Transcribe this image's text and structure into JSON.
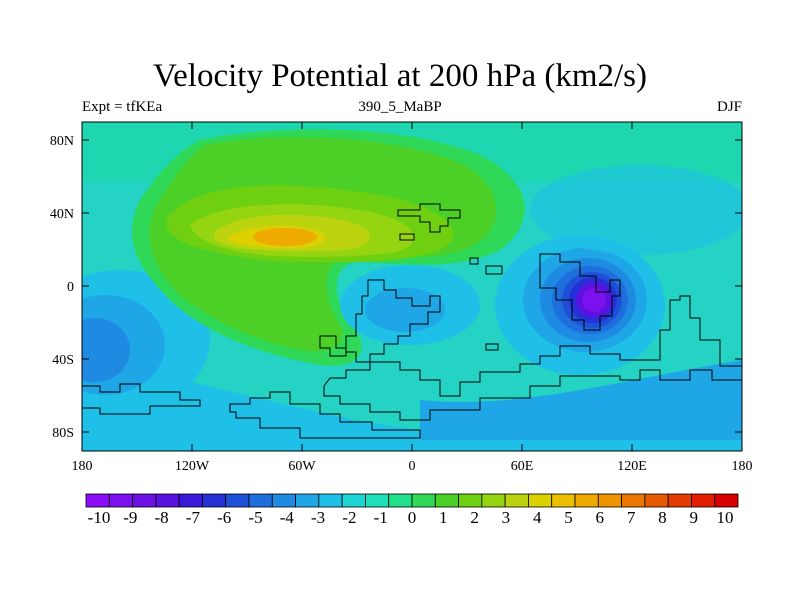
{
  "title": "Velocity Potential at 200 hPa (km2/s)",
  "subtitle_left": "Expt = tfKEa",
  "subtitle_center": "390_5_MaBP",
  "subtitle_right": "DJF",
  "x_ticks": [
    "180",
    "120W",
    "60W",
    "0",
    "60E",
    "120E",
    "180"
  ],
  "y_ticks": [
    "80N",
    "40N",
    "0",
    "40S",
    "80S"
  ],
  "colorbar": {
    "labels": [
      "-10",
      "-9",
      "-8",
      "-7",
      "-6",
      "-5",
      "-4",
      "-3",
      "-2",
      "-1",
      "0",
      "1",
      "2",
      "3",
      "4",
      "5",
      "6",
      "7",
      "8",
      "9",
      "10"
    ],
    "colors": [
      "#8a0ef5",
      "#7d10ee",
      "#6c10e6",
      "#5a12e0",
      "#3a1ad8",
      "#2530d6",
      "#1e50d8",
      "#1e6ede",
      "#1e8ae2",
      "#1ea6e6",
      "#1ec0e8",
      "#1ed4d4",
      "#1ee0b8",
      "#20e08c",
      "#30d858",
      "#4cd028",
      "#6ed010",
      "#94d410",
      "#bcd410",
      "#dcd000",
      "#ecc000",
      "#eeaa00",
      "#ee9400",
      "#ea7800",
      "#e65a00",
      "#e43c00",
      "#e21e00",
      "#d80000"
    ]
  },
  "map": {
    "background": "#24d3c3",
    "lon_range": [
      -180,
      180
    ],
    "lat_range": [
      -90,
      90
    ]
  }
}
